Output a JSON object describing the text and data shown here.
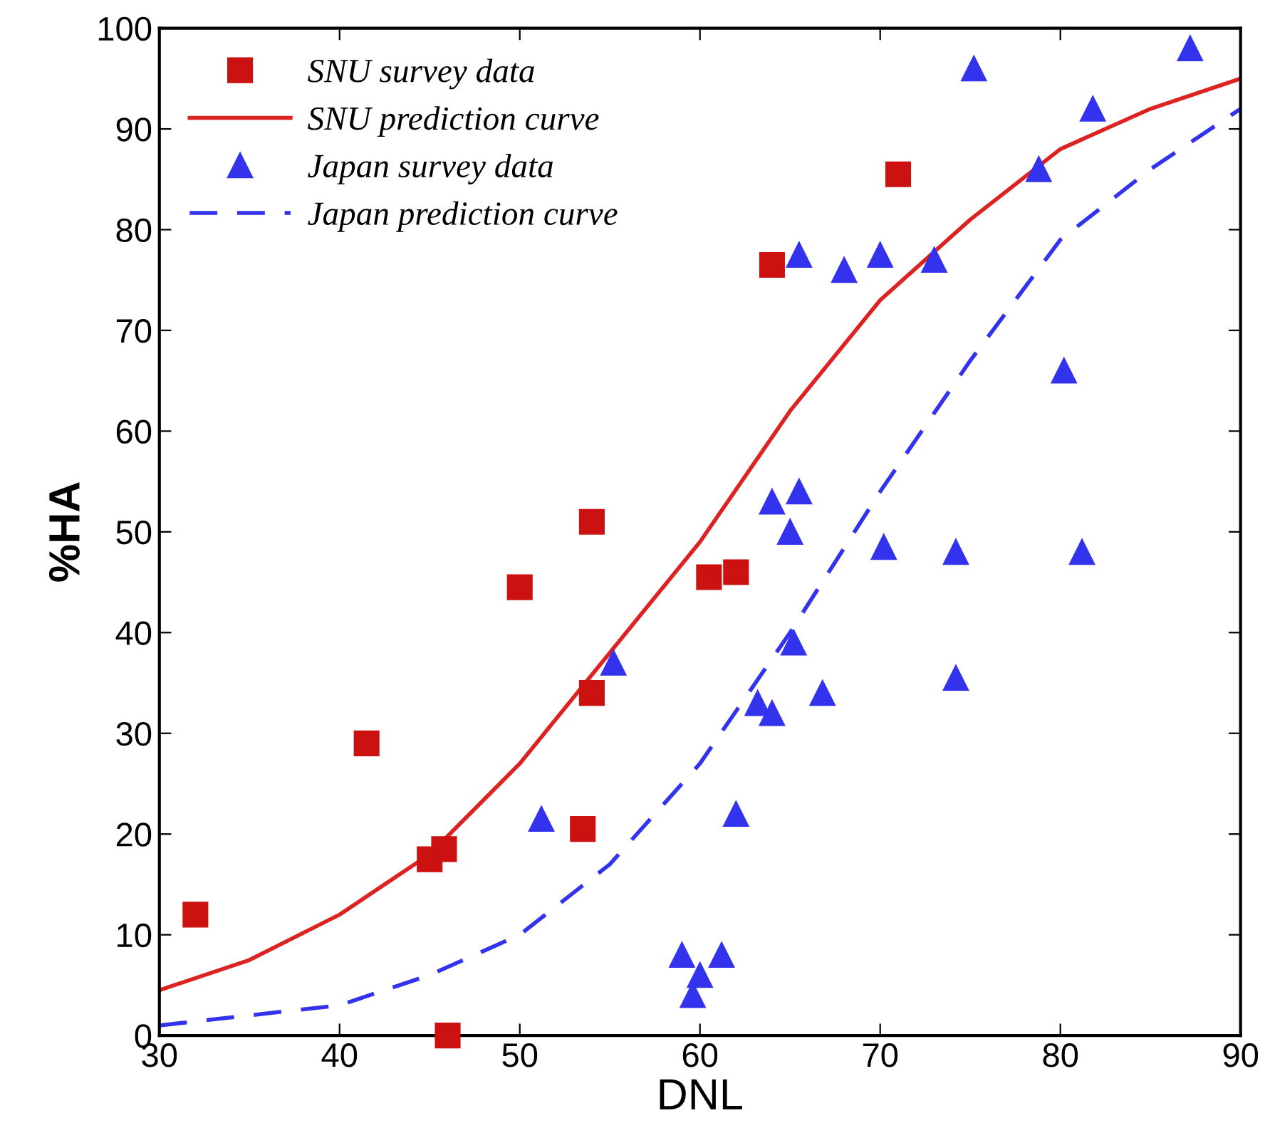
{
  "chart_data": {
    "type": "scatter",
    "xlabel": "DNL",
    "ylabel": "%HA",
    "xlim": [
      30,
      90
    ],
    "ylim": [
      0,
      100
    ],
    "xticks": [
      30,
      40,
      50,
      60,
      70,
      80,
      90
    ],
    "yticks": [
      0,
      10,
      20,
      30,
      40,
      50,
      60,
      70,
      80,
      90,
      100
    ],
    "legend": "top left",
    "grid": false,
    "series": [
      {
        "name": "SNU survey data",
        "marker": "square",
        "color": "#cc1111",
        "x": [
          32,
          41.5,
          45,
          45.8,
          46,
          50,
          53.5,
          54,
          54,
          60.5,
          62,
          64,
          71
        ],
        "values": [
          12,
          29,
          17.5,
          18.5,
          0,
          44.5,
          20.5,
          34,
          51,
          45.5,
          46,
          76.5,
          85.5
        ]
      },
      {
        "name": "SNU prediction curve",
        "type": "line",
        "line_style": "solid",
        "marker": "none",
        "color": "#dd2222",
        "x": [
          30,
          35,
          40,
          45,
          50,
          55,
          60,
          65,
          70,
          75,
          80,
          85,
          90
        ],
        "values": [
          4.5,
          7.5,
          12,
          18,
          27,
          38,
          49,
          62,
          73,
          81,
          88,
          92,
          95
        ]
      },
      {
        "name": "Japan survey data",
        "marker": "triangle",
        "color": "#3333ee",
        "x": [
          51.2,
          55.2,
          59,
          59.6,
          60,
          61.2,
          62,
          63.2,
          64,
          64,
          65,
          65.2,
          65.5,
          65.5,
          66.8,
          68,
          70,
          70.2,
          73,
          74.2,
          74.2,
          75.2,
          78.8,
          80.2,
          81.2,
          81.8,
          87.2
        ],
        "values": [
          21.5,
          37,
          8,
          4,
          6,
          8,
          22,
          33,
          53,
          32,
          50,
          39,
          54,
          77.5,
          34,
          76,
          77.5,
          48.5,
          77,
          48,
          35.5,
          96,
          86,
          66,
          48,
          92,
          98
        ]
      },
      {
        "name": "Japan prediction curve",
        "type": "line",
        "line_style": "dashed",
        "marker": "none",
        "color": "#3333ee",
        "x": [
          30,
          35,
          40,
          45,
          50,
          55,
          60,
          65,
          70,
          75,
          80,
          85,
          90
        ],
        "values": [
          1,
          2,
          3,
          6,
          10,
          17,
          27,
          40,
          54,
          67,
          79,
          86,
          92
        ]
      }
    ]
  }
}
